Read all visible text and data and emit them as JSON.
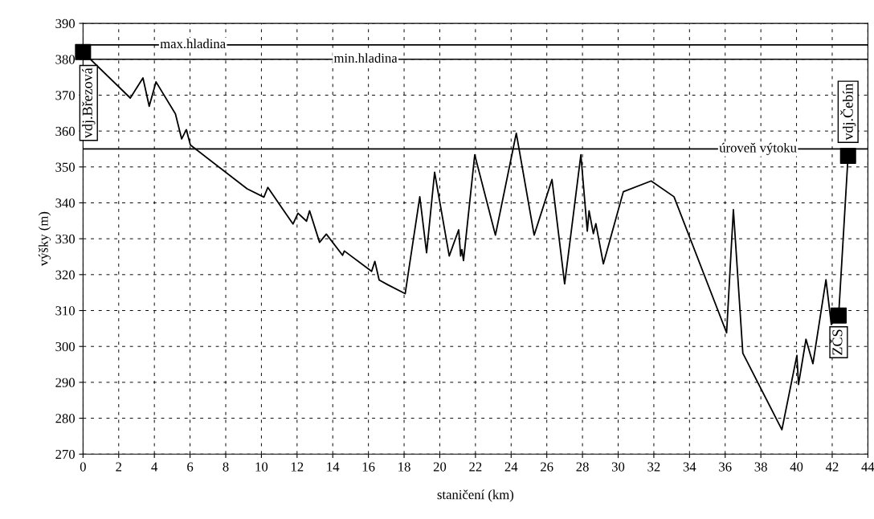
{
  "chart_data": {
    "type": "line",
    "xlabel": "staničení (km)",
    "ylabel": "výšky (m)",
    "xlim": [
      0,
      44
    ],
    "xticks": [
      0,
      2,
      4,
      6,
      8,
      10,
      12,
      14,
      16,
      18,
      20,
      22,
      24,
      26,
      28,
      30,
      32,
      34,
      36,
      38,
      40,
      42,
      44
    ],
    "ylim": [
      270,
      390
    ],
    "yticks": [
      270,
      280,
      290,
      300,
      310,
      320,
      330,
      340,
      350,
      360,
      370,
      380,
      390
    ],
    "grid": true,
    "marker": "none",
    "line_style": "solid",
    "series": [
      {
        "color": "#000000",
        "x": [
          0,
          2.65,
          3.36,
          3.71,
          4.09,
          5.18,
          5.53,
          5.79,
          6.02,
          9.2,
          10.14,
          10.36,
          11.77,
          12.05,
          12.53,
          12.7,
          13.26,
          13.64,
          14.55,
          14.65,
          16.18,
          16.36,
          16.6,
          17.08,
          18.06,
          18.88,
          19.26,
          19.71,
          20.53,
          21.06,
          21.17,
          21.24,
          21.33,
          21.96,
          23.12,
          24.29,
          25.29,
          26.29,
          27.0,
          27.91,
          28.27,
          28.37,
          28.61,
          28.75,
          29.17,
          30.29,
          31.85,
          33.13,
          36.08,
          36.46,
          36.99,
          39.18,
          40.02,
          40.11,
          40.53,
          40.92,
          41.65,
          41.95,
          42.36,
          42.89
        ],
        "values": [
          382,
          369.2,
          374.8,
          366.9,
          373.7,
          364.8,
          357.8,
          360.4,
          356.1,
          343.9,
          341.6,
          344.3,
          334.1,
          337.1,
          334.9,
          337.8,
          329.0,
          331.3,
          325.4,
          326.6,
          320.9,
          323.7,
          318.5,
          317.2,
          314.7,
          341.7,
          326.1,
          348.5,
          325.2,
          332.5,
          325.2,
          327.0,
          323.9,
          353.4,
          331.0,
          359.4,
          331.0,
          346.5,
          317.4,
          353.4,
          332.1,
          337.8,
          331.4,
          334.2,
          323.0,
          343.1,
          346.1,
          341.7,
          303.8,
          338.1,
          298.1,
          276.8,
          297.5,
          289.4,
          302.0,
          295.2,
          318.6,
          306.1,
          308.6,
          353.1
        ]
      },
      {
        "type": "scatter",
        "color": "#000000",
        "marker": "square",
        "x": [
          0,
          42.36,
          42.89
        ],
        "values": [
          382,
          308.6,
          353.1
        ]
      }
    ],
    "ref_lines": [
      {
        "axis": "y",
        "value": 384,
        "label": "max.hladina"
      },
      {
        "axis": "y",
        "value": 380,
        "label": "min.hladina"
      },
      {
        "axis": "y",
        "value": 355,
        "label": "úroveň výtoku"
      }
    ],
    "annotations": [
      {
        "text": "vdj.Březová",
        "x": 0,
        "y": 382
      },
      {
        "text": "ZČS",
        "x": 42.36,
        "y": 308.6
      },
      {
        "text": "vdj.Čebín",
        "x": 42.89,
        "y": 353.1
      }
    ]
  }
}
